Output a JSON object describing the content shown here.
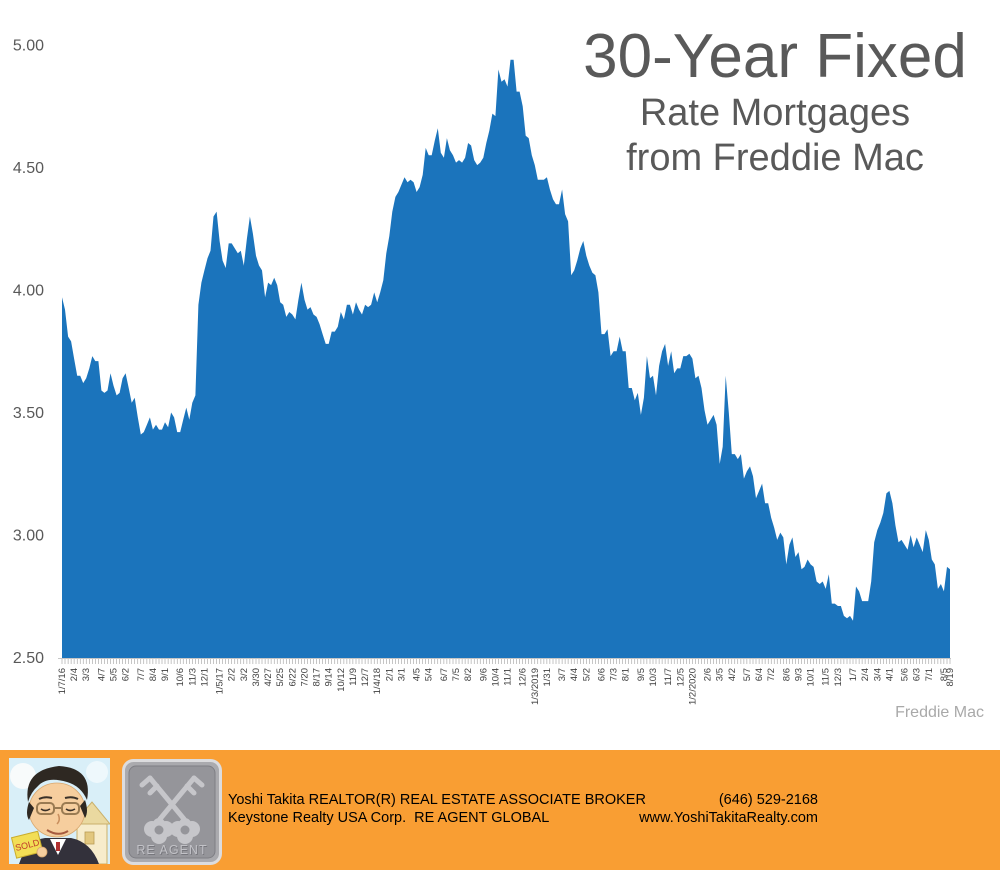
{
  "chart_data": {
    "type": "area",
    "title": "30-Year Fixed",
    "subtitle1": "Rate Mortgages",
    "subtitle2": "from Freddie Mac",
    "attribution": "Freddie Mac",
    "area_color": "#1B74BC",
    "grid": false,
    "legend": false,
    "ylim": [
      2.5,
      5.0
    ],
    "y_ticks": [
      "5.00",
      "4.50",
      "4.00",
      "3.50",
      "3.00",
      "2.50"
    ],
    "y_tick_values": [
      5.0,
      4.5,
      4.0,
      3.5,
      3.0,
      2.5
    ],
    "x_tick_labels": [
      {
        "i": 0,
        "label": "1/7/16"
      },
      {
        "i": 4,
        "label": "2/4"
      },
      {
        "i": 8,
        "label": "3/3"
      },
      {
        "i": 13,
        "label": "4/7"
      },
      {
        "i": 17,
        "label": "5/5"
      },
      {
        "i": 21,
        "label": "6/2"
      },
      {
        "i": 26,
        "label": "7/7"
      },
      {
        "i": 30,
        "label": "8/4"
      },
      {
        "i": 34,
        "label": "9/1"
      },
      {
        "i": 39,
        "label": "10/6"
      },
      {
        "i": 43,
        "label": "11/3"
      },
      {
        "i": 47,
        "label": "12/1"
      },
      {
        "i": 52,
        "label": "1/5/17"
      },
      {
        "i": 56,
        "label": "2/2"
      },
      {
        "i": 60,
        "label": "3/2"
      },
      {
        "i": 64,
        "label": "3/30"
      },
      {
        "i": 68,
        "label": "4/27"
      },
      {
        "i": 72,
        "label": "5/25"
      },
      {
        "i": 76,
        "label": "6/22"
      },
      {
        "i": 80,
        "label": "7/20"
      },
      {
        "i": 84,
        "label": "8/17"
      },
      {
        "i": 88,
        "label": "9/14"
      },
      {
        "i": 92,
        "label": "10/12"
      },
      {
        "i": 96,
        "label": "11/9"
      },
      {
        "i": 100,
        "label": "12/7"
      },
      {
        "i": 104,
        "label": "1/4/18"
      },
      {
        "i": 108,
        "label": "2/1"
      },
      {
        "i": 112,
        "label": "3/1"
      },
      {
        "i": 117,
        "label": "4/5"
      },
      {
        "i": 121,
        "label": "5/4"
      },
      {
        "i": 126,
        "label": "6/7"
      },
      {
        "i": 130,
        "label": "7/5"
      },
      {
        "i": 134,
        "label": "8/2"
      },
      {
        "i": 139,
        "label": "9/6"
      },
      {
        "i": 143,
        "label": "10/4"
      },
      {
        "i": 147,
        "label": "11/1"
      },
      {
        "i": 152,
        "label": "12/6"
      },
      {
        "i": 156,
        "label": "1/3/2019"
      },
      {
        "i": 160,
        "label": "1/31"
      },
      {
        "i": 165,
        "label": "3/7"
      },
      {
        "i": 169,
        "label": "4/4"
      },
      {
        "i": 173,
        "label": "5/2"
      },
      {
        "i": 178,
        "label": "6/6"
      },
      {
        "i": 182,
        "label": "7/3"
      },
      {
        "i": 186,
        "label": "8/1"
      },
      {
        "i": 191,
        "label": "9/5"
      },
      {
        "i": 195,
        "label": "10/3"
      },
      {
        "i": 200,
        "label": "11/7"
      },
      {
        "i": 204,
        "label": "12/5"
      },
      {
        "i": 208,
        "label": "1/2/2020"
      },
      {
        "i": 213,
        "label": "2/6"
      },
      {
        "i": 217,
        "label": "3/5"
      },
      {
        "i": 221,
        "label": "4/2"
      },
      {
        "i": 226,
        "label": "5/7"
      },
      {
        "i": 230,
        "label": "6/4"
      },
      {
        "i": 234,
        "label": "7/2"
      },
      {
        "i": 239,
        "label": "8/6"
      },
      {
        "i": 243,
        "label": "9/3"
      },
      {
        "i": 247,
        "label": "10/1"
      },
      {
        "i": 252,
        "label": "11/5"
      },
      {
        "i": 256,
        "label": "12/3"
      },
      {
        "i": 261,
        "label": "1/7"
      },
      {
        "i": 265,
        "label": "2/4"
      },
      {
        "i": 269,
        "label": "3/4"
      },
      {
        "i": 273,
        "label": "4/1"
      },
      {
        "i": 278,
        "label": "5/6"
      },
      {
        "i": 282,
        "label": "6/3"
      },
      {
        "i": 286,
        "label": "7/1"
      },
      {
        "i": 291,
        "label": "8/5"
      },
      {
        "i": 293,
        "label": "8/19"
      }
    ],
    "values": [
      3.97,
      3.92,
      3.81,
      3.79,
      3.72,
      3.65,
      3.65,
      3.62,
      3.64,
      3.68,
      3.73,
      3.71,
      3.71,
      3.59,
      3.58,
      3.59,
      3.66,
      3.61,
      3.57,
      3.58,
      3.64,
      3.66,
      3.6,
      3.54,
      3.56,
      3.48,
      3.41,
      3.42,
      3.45,
      3.48,
      3.43,
      3.45,
      3.43,
      3.43,
      3.46,
      3.44,
      3.5,
      3.48,
      3.42,
      3.42,
      3.47,
      3.52,
      3.47,
      3.54,
      3.57,
      3.94,
      4.03,
      4.08,
      4.13,
      4.16,
      4.3,
      4.32,
      4.2,
      4.12,
      4.09,
      4.19,
      4.19,
      4.17,
      4.15,
      4.16,
      4.1,
      4.21,
      4.3,
      4.23,
      4.14,
      4.1,
      4.08,
      3.97,
      4.03,
      4.02,
      4.05,
      4.02,
      3.95,
      3.94,
      3.89,
      3.91,
      3.9,
      3.88,
      3.96,
      4.03,
      3.96,
      3.92,
      3.93,
      3.9,
      3.89,
      3.86,
      3.82,
      3.78,
      3.78,
      3.83,
      3.83,
      3.85,
      3.91,
      3.88,
      3.94,
      3.94,
      3.9,
      3.95,
      3.92,
      3.9,
      3.94,
      3.93,
      3.94,
      3.99,
      3.95,
      3.99,
      4.04,
      4.15,
      4.22,
      4.32,
      4.38,
      4.4,
      4.43,
      4.46,
      4.44,
      4.45,
      4.44,
      4.4,
      4.42,
      4.47,
      4.58,
      4.55,
      4.55,
      4.61,
      4.66,
      4.56,
      4.54,
      4.62,
      4.57,
      4.55,
      4.52,
      4.53,
      4.52,
      4.54,
      4.6,
      4.59,
      4.53,
      4.51,
      4.52,
      4.54,
      4.6,
      4.65,
      4.72,
      4.71,
      4.9,
      4.85,
      4.86,
      4.83,
      4.94,
      4.94,
      4.81,
      4.81,
      4.75,
      4.63,
      4.62,
      4.55,
      4.51,
      4.45,
      4.45,
      4.45,
      4.46,
      4.41,
      4.37,
      4.35,
      4.35,
      4.41,
      4.31,
      4.28,
      4.06,
      4.08,
      4.12,
      4.17,
      4.2,
      4.14,
      4.1,
      4.07,
      4.06,
      3.99,
      3.82,
      3.82,
      3.84,
      3.73,
      3.75,
      3.75,
      3.81,
      3.75,
      3.75,
      3.6,
      3.6,
      3.55,
      3.58,
      3.49,
      3.56,
      3.73,
      3.64,
      3.65,
      3.57,
      3.69,
      3.75,
      3.78,
      3.69,
      3.75,
      3.66,
      3.68,
      3.68,
      3.73,
      3.73,
      3.74,
      3.72,
      3.64,
      3.65,
      3.6,
      3.51,
      3.45,
      3.47,
      3.49,
      3.45,
      3.29,
      3.36,
      3.65,
      3.5,
      3.33,
      3.33,
      3.31,
      3.33,
      3.23,
      3.26,
      3.28,
      3.24,
      3.15,
      3.18,
      3.21,
      3.13,
      3.13,
      3.07,
      3.03,
      2.98,
      3.01,
      2.99,
      2.88,
      2.96,
      2.99,
      2.91,
      2.93,
      2.86,
      2.87,
      2.9,
      2.88,
      2.87,
      2.81,
      2.8,
      2.81,
      2.78,
      2.84,
      2.72,
      2.72,
      2.71,
      2.71,
      2.67,
      2.66,
      2.67,
      2.65,
      2.79,
      2.77,
      2.73,
      2.73,
      2.73,
      2.81,
      2.97,
      3.02,
      3.05,
      3.09,
      3.17,
      3.18,
      3.13,
      3.04,
      2.97,
      2.98,
      2.96,
      2.94,
      3.0,
      2.95,
      2.99,
      2.96,
      2.93,
      3.02,
      2.98,
      2.9,
      2.88,
      2.78,
      2.8,
      2.77,
      2.87,
      2.86
    ]
  },
  "footer": {
    "background": "#F99E33",
    "line1_left": "Yoshi Takita REALTOR(R) REAL ESTATE ASSOCIATE BROKER",
    "line1_right": "(646) 529-2168",
    "line2_left": "Keystone Realty USA Corp.  RE AGENT GLOBAL",
    "line2_right": "www.YoshiTakitaRealty.com",
    "logo_text": "RE AGENT",
    "sold_sign_text": "SOLD"
  }
}
